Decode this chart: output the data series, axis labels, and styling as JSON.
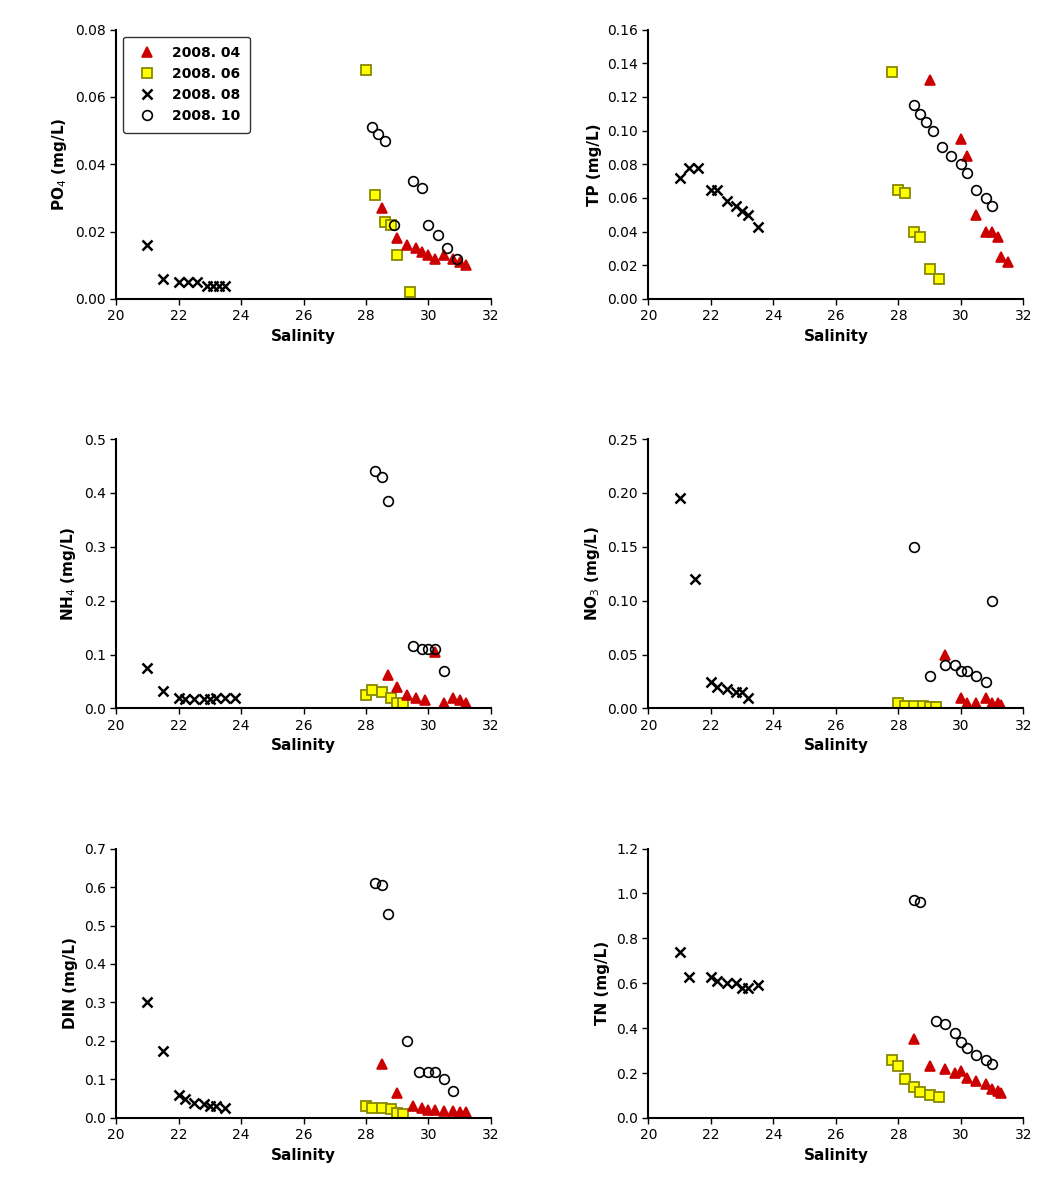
{
  "subplots": [
    {
      "ylabel": "PO$_4$ (mg/L)",
      "ylim": [
        0,
        0.08
      ],
      "yticks": [
        0.0,
        0.02,
        0.04,
        0.06,
        0.08
      ],
      "xlim": [
        20,
        32
      ],
      "xticks": [
        20,
        22,
        24,
        26,
        28,
        30,
        32
      ],
      "series": {
        "apr": {
          "x": [
            28.5,
            29.0,
            29.3,
            29.6,
            29.8,
            30.0,
            30.2,
            30.5,
            30.8,
            31.0,
            31.2
          ],
          "y": [
            0.027,
            0.018,
            0.016,
            0.015,
            0.014,
            0.013,
            0.012,
            0.013,
            0.012,
            0.011,
            0.01
          ]
        },
        "jun": {
          "x": [
            28.0,
            28.3,
            28.6,
            28.8,
            29.0,
            29.4
          ],
          "y": [
            0.068,
            0.031,
            0.023,
            0.022,
            0.013,
            0.002
          ]
        },
        "aug": {
          "x": [
            21.0,
            21.5,
            22.0,
            22.3,
            22.6,
            22.9,
            23.1,
            23.3,
            23.5
          ],
          "y": [
            0.016,
            0.006,
            0.005,
            0.005,
            0.005,
            0.004,
            0.004,
            0.004,
            0.004
          ]
        },
        "oct": {
          "x": [
            28.2,
            28.4,
            28.6,
            28.9,
            29.5,
            29.8,
            30.0,
            30.3,
            30.6,
            30.9
          ],
          "y": [
            0.051,
            0.049,
            0.047,
            0.022,
            0.035,
            0.033,
            0.022,
            0.019,
            0.015,
            0.012
          ]
        }
      }
    },
    {
      "ylabel": "TP (mg/L)",
      "ylim": [
        0,
        0.16
      ],
      "yticks": [
        0.0,
        0.02,
        0.04,
        0.06,
        0.08,
        0.1,
        0.12,
        0.14,
        0.16
      ],
      "xlim": [
        20,
        32
      ],
      "xticks": [
        20,
        22,
        24,
        26,
        28,
        30,
        32
      ],
      "series": {
        "apr": {
          "x": [
            29.0,
            30.0,
            30.2,
            30.5,
            30.8,
            31.0,
            31.2,
            31.3,
            31.5
          ],
          "y": [
            0.13,
            0.095,
            0.085,
            0.05,
            0.04,
            0.04,
            0.037,
            0.025,
            0.022
          ]
        },
        "jun": {
          "x": [
            27.8,
            28.0,
            28.2,
            28.5,
            28.7,
            29.0,
            29.3
          ],
          "y": [
            0.135,
            0.065,
            0.063,
            0.04,
            0.037,
            0.018,
            0.012
          ]
        },
        "aug": {
          "x": [
            21.0,
            21.3,
            21.6,
            22.0,
            22.2,
            22.5,
            22.8,
            23.0,
            23.2,
            23.5
          ],
          "y": [
            0.072,
            0.078,
            0.078,
            0.065,
            0.065,
            0.058,
            0.055,
            0.052,
            0.05,
            0.043
          ]
        },
        "oct": {
          "x": [
            28.5,
            28.7,
            28.9,
            29.1,
            29.4,
            29.7,
            30.0,
            30.2,
            30.5,
            30.8,
            31.0
          ],
          "y": [
            0.115,
            0.11,
            0.105,
            0.1,
            0.09,
            0.085,
            0.08,
            0.075,
            0.065,
            0.06,
            0.055
          ]
        }
      }
    },
    {
      "ylabel": "NH$_4$ (mg/L)",
      "ylim": [
        0,
        0.5
      ],
      "yticks": [
        0.0,
        0.1,
        0.2,
        0.3,
        0.4,
        0.5
      ],
      "xlim": [
        20,
        32
      ],
      "xticks": [
        20,
        22,
        24,
        26,
        28,
        30,
        32
      ],
      "series": {
        "apr": {
          "x": [
            28.7,
            29.0,
            29.3,
            29.6,
            29.9,
            30.2,
            30.5,
            30.8,
            31.0,
            31.2
          ],
          "y": [
            0.063,
            0.04,
            0.025,
            0.02,
            0.015,
            0.105,
            0.01,
            0.02,
            0.015,
            0.01
          ]
        },
        "jun": {
          "x": [
            28.0,
            28.2,
            28.5,
            28.8,
            29.0,
            29.2
          ],
          "y": [
            0.025,
            0.035,
            0.03,
            0.02,
            0.01,
            0.01
          ]
        },
        "aug": {
          "x": [
            21.0,
            21.5,
            22.0,
            22.2,
            22.5,
            22.8,
            23.0,
            23.2,
            23.5,
            23.8
          ],
          "y": [
            0.075,
            0.032,
            0.02,
            0.018,
            0.018,
            0.018,
            0.017,
            0.02,
            0.02,
            0.02
          ]
        },
        "oct": {
          "x": [
            28.3,
            28.5,
            28.7,
            29.5,
            29.8,
            30.0,
            30.2,
            30.5
          ],
          "y": [
            0.44,
            0.43,
            0.385,
            0.115,
            0.11,
            0.11,
            0.11,
            0.07
          ]
        }
      }
    },
    {
      "ylabel": "NO$_3$ (mg/L)",
      "ylim": [
        0,
        0.25
      ],
      "yticks": [
        0.0,
        0.05,
        0.1,
        0.15,
        0.2,
        0.25
      ],
      "xlim": [
        20,
        32
      ],
      "xticks": [
        20,
        22,
        24,
        26,
        28,
        30,
        32
      ],
      "series": {
        "apr": {
          "x": [
            29.5,
            30.0,
            30.2,
            30.5,
            30.8,
            31.0,
            31.2,
            31.3
          ],
          "y": [
            0.05,
            0.01,
            0.005,
            0.005,
            0.01,
            0.005,
            0.005,
            0.003
          ]
        },
        "jun": {
          "x": [
            28.0,
            28.2,
            28.5,
            28.8,
            29.0,
            29.2
          ],
          "y": [
            0.005,
            0.002,
            0.002,
            0.002,
            0.001,
            0.001
          ]
        },
        "aug": {
          "x": [
            21.0,
            21.5,
            22.0,
            22.2,
            22.5,
            22.8,
            23.0,
            23.2
          ],
          "y": [
            0.195,
            0.12,
            0.025,
            0.02,
            0.018,
            0.015,
            0.015,
            0.01
          ]
        },
        "oct": {
          "x": [
            28.5,
            29.0,
            29.5,
            29.8,
            30.0,
            30.2,
            30.5,
            30.8,
            31.0
          ],
          "y": [
            0.15,
            0.03,
            0.04,
            0.04,
            0.035,
            0.035,
            0.03,
            0.025,
            0.1
          ]
        }
      }
    },
    {
      "ylabel": "DIN (mg/L)",
      "ylim": [
        0,
        0.7
      ],
      "yticks": [
        0.0,
        0.1,
        0.2,
        0.3,
        0.4,
        0.5,
        0.6,
        0.7
      ],
      "xlim": [
        20,
        32
      ],
      "xticks": [
        20,
        22,
        24,
        26,
        28,
        30,
        32
      ],
      "series": {
        "apr": {
          "x": [
            28.5,
            29.0,
            29.5,
            29.8,
            30.0,
            30.2,
            30.5,
            30.8,
            31.0,
            31.2
          ],
          "y": [
            0.14,
            0.065,
            0.03,
            0.025,
            0.02,
            0.02,
            0.018,
            0.018,
            0.015,
            0.015
          ]
        },
        "jun": {
          "x": [
            28.0,
            28.2,
            28.5,
            28.8,
            29.0,
            29.2
          ],
          "y": [
            0.03,
            0.025,
            0.025,
            0.022,
            0.012,
            0.01
          ]
        },
        "aug": {
          "x": [
            21.0,
            21.5,
            22.0,
            22.2,
            22.5,
            22.8,
            23.0,
            23.2,
            23.5
          ],
          "y": [
            0.3,
            0.175,
            0.06,
            0.05,
            0.04,
            0.035,
            0.03,
            0.03,
            0.025
          ]
        },
        "oct": {
          "x": [
            28.3,
            28.5,
            28.7,
            29.3,
            29.7,
            30.0,
            30.2,
            30.5,
            30.8
          ],
          "y": [
            0.61,
            0.605,
            0.53,
            0.2,
            0.12,
            0.12,
            0.12,
            0.1,
            0.07
          ]
        }
      }
    },
    {
      "ylabel": "TN (mg/L)",
      "ylim": [
        0,
        1.2
      ],
      "yticks": [
        0.0,
        0.2,
        0.4,
        0.6,
        0.8,
        1.0,
        1.2
      ],
      "xlim": [
        20,
        32
      ],
      "xticks": [
        20,
        22,
        24,
        26,
        28,
        30,
        32
      ],
      "series": {
        "apr": {
          "x": [
            28.5,
            29.0,
            29.5,
            29.8,
            30.0,
            30.2,
            30.5,
            30.8,
            31.0,
            31.2,
            31.3
          ],
          "y": [
            0.35,
            0.23,
            0.22,
            0.2,
            0.21,
            0.18,
            0.165,
            0.15,
            0.13,
            0.12,
            0.11
          ]
        },
        "jun": {
          "x": [
            27.8,
            28.0,
            28.2,
            28.5,
            28.7,
            29.0,
            29.3
          ],
          "y": [
            0.26,
            0.23,
            0.175,
            0.14,
            0.115,
            0.1,
            0.095
          ]
        },
        "aug": {
          "x": [
            21.0,
            21.3,
            22.0,
            22.2,
            22.5,
            22.8,
            23.0,
            23.2,
            23.5
          ],
          "y": [
            0.74,
            0.63,
            0.63,
            0.61,
            0.6,
            0.6,
            0.58,
            0.58,
            0.59
          ]
        },
        "oct": {
          "x": [
            28.5,
            28.7,
            29.2,
            29.5,
            29.8,
            30.0,
            30.2,
            30.5,
            30.8,
            31.0
          ],
          "y": [
            0.97,
            0.96,
            0.43,
            0.42,
            0.38,
            0.34,
            0.31,
            0.28,
            0.26,
            0.24
          ]
        }
      }
    }
  ],
  "legend_labels": {
    "apr": "2008. 04",
    "jun": "2008. 06",
    "aug": "2008. 08",
    "oct": "2008. 10"
  },
  "xlabel": "Salinity",
  "background_color": "#ffffff",
  "ylabel_color": "#000000",
  "xlabel_color": "#000000",
  "tick_label_color": "#000000",
  "spine_color": "#000000"
}
